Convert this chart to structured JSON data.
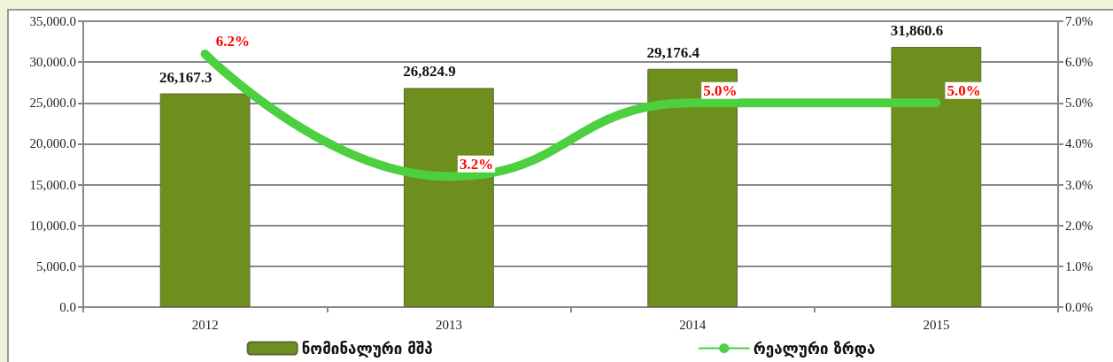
{
  "chart_data": {
    "type": "bar",
    "categories": [
      "2012",
      "2013",
      "2014",
      "2015"
    ],
    "series": [
      {
        "name": "ნომინალური მშპ",
        "color": "#6e8e1e",
        "values": [
          26167.3,
          26824.9,
          29176.4,
          31860.6
        ],
        "value_labels": [
          "26,167.3",
          "26,824.9",
          "29,176.4",
          "31,860.6"
        ]
      },
      {
        "name": "რეალური ზრდა",
        "type": "line",
        "axis": "y2",
        "color": "#4cd040",
        "values": [
          6.2,
          3.2,
          5.0,
          5.0
        ],
        "value_labels": [
          "6.2%",
          "3.2%",
          "5.0%",
          "5.0%"
        ]
      }
    ],
    "ylim": [
      0,
      35000
    ],
    "yticks": [
      {
        "value": 0,
        "label": "0.0"
      },
      {
        "value": 5000,
        "label": "5,000.0"
      },
      {
        "value": 10000,
        "label": "10,000.0"
      },
      {
        "value": 15000,
        "label": "15,000.0"
      },
      {
        "value": 20000,
        "label": "20,000.0"
      },
      {
        "value": 25000,
        "label": "25,000.0"
      },
      {
        "value": 30000,
        "label": "30,000.0"
      },
      {
        "value": 35000,
        "label": "35,000.0"
      }
    ],
    "y2lim": [
      0,
      7
    ],
    "y2ticks": [
      {
        "value": 0,
        "label": "0.0%"
      },
      {
        "value": 1,
        "label": "1.0%"
      },
      {
        "value": 2,
        "label": "2.0%"
      },
      {
        "value": 3,
        "label": "3.0%"
      },
      {
        "value": 4,
        "label": "4.0%"
      },
      {
        "value": 5,
        "label": "5.0%"
      },
      {
        "value": 6,
        "label": "6.0%"
      },
      {
        "value": 7,
        "label": "7.0%"
      }
    ],
    "grid": "y",
    "legend": "bottom",
    "marker": "none"
  }
}
